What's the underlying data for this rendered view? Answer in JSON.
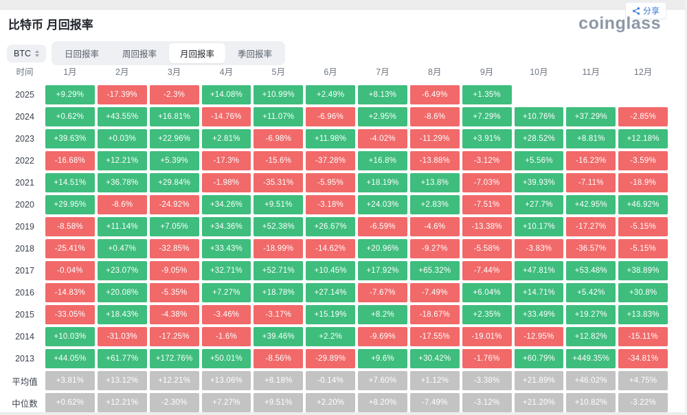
{
  "header": {
    "title": "比特币 月回报率",
    "share_label": "分享",
    "logo_text": "coinglass"
  },
  "controls": {
    "symbol_select": {
      "value": "BTC"
    },
    "tabs": [
      {
        "label": "日回报率",
        "active": false
      },
      {
        "label": "周回报率",
        "active": false
      },
      {
        "label": "月回报率",
        "active": true
      },
      {
        "label": "季回报率",
        "active": false
      }
    ]
  },
  "colors": {
    "positive": "#3ebd7d",
    "negative": "#f16969",
    "summary": "#c3c3c3",
    "accent_blue": "#3577d4",
    "logo_gray": "#8e98a6"
  },
  "table": {
    "time_header": "时间",
    "months": [
      "1月",
      "2月",
      "3月",
      "4月",
      "5月",
      "6月",
      "7月",
      "8月",
      "9月",
      "10月",
      "11月",
      "12月"
    ],
    "rows": [
      {
        "label": "2025",
        "type": "year",
        "values": [
          "+9.29%",
          "-17.39%",
          "-2.3%",
          "+14.08%",
          "+10.99%",
          "+2.49%",
          "+8.13%",
          "-6.49%",
          "+1.35%",
          "",
          "",
          ""
        ]
      },
      {
        "label": "2024",
        "type": "year",
        "values": [
          "+0.62%",
          "+43.55%",
          "+16.81%",
          "-14.76%",
          "+11.07%",
          "-6.96%",
          "+2.95%",
          "-8.6%",
          "+7.29%",
          "+10.76%",
          "+37.29%",
          "-2.85%"
        ]
      },
      {
        "label": "2023",
        "type": "year",
        "values": [
          "+39.63%",
          "+0.03%",
          "+22.96%",
          "+2.81%",
          "-6.98%",
          "+11.98%",
          "-4.02%",
          "-11.29%",
          "+3.91%",
          "+28.52%",
          "+8.81%",
          "+12.18%"
        ]
      },
      {
        "label": "2022",
        "type": "year",
        "values": [
          "-16.68%",
          "+12.21%",
          "+5.39%",
          "-17.3%",
          "-15.6%",
          "-37.28%",
          "+16.8%",
          "-13.88%",
          "-3.12%",
          "+5.56%",
          "-16.23%",
          "-3.59%"
        ]
      },
      {
        "label": "2021",
        "type": "year",
        "values": [
          "+14.51%",
          "+36.78%",
          "+29.84%",
          "-1.98%",
          "-35.31%",
          "-5.95%",
          "+18.19%",
          "+13.8%",
          "-7.03%",
          "+39.93%",
          "-7.11%",
          "-18.9%"
        ]
      },
      {
        "label": "2020",
        "type": "year",
        "values": [
          "+29.95%",
          "-8.6%",
          "-24.92%",
          "+34.26%",
          "+9.51%",
          "-3.18%",
          "+24.03%",
          "+2.83%",
          "-7.51%",
          "+27.7%",
          "+42.95%",
          "+46.92%"
        ]
      },
      {
        "label": "2019",
        "type": "year",
        "values": [
          "-8.58%",
          "+11.14%",
          "+7.05%",
          "+34.36%",
          "+52.38%",
          "+26.67%",
          "-6.59%",
          "-4.6%",
          "-13.38%",
          "+10.17%",
          "-17.27%",
          "-5.15%"
        ]
      },
      {
        "label": "2018",
        "type": "year",
        "values": [
          "-25.41%",
          "+0.47%",
          "-32.85%",
          "+33.43%",
          "-18.99%",
          "-14.62%",
          "+20.96%",
          "-9.27%",
          "-5.58%",
          "-3.83%",
          "-36.57%",
          "-5.15%"
        ]
      },
      {
        "label": "2017",
        "type": "year",
        "values": [
          "-0.04%",
          "+23.07%",
          "-9.05%",
          "+32.71%",
          "+52.71%",
          "+10.45%",
          "+17.92%",
          "+65.32%",
          "-7.44%",
          "+47.81%",
          "+53.48%",
          "+38.89%"
        ]
      },
      {
        "label": "2016",
        "type": "year",
        "values": [
          "-14.83%",
          "+20.08%",
          "-5.35%",
          "+7.27%",
          "+18.78%",
          "+27.14%",
          "-7.67%",
          "-7.49%",
          "+6.04%",
          "+14.71%",
          "+5.42%",
          "+30.8%"
        ]
      },
      {
        "label": "2015",
        "type": "year",
        "values": [
          "-33.05%",
          "+18.43%",
          "-4.38%",
          "-3.46%",
          "-3.17%",
          "+15.19%",
          "+8.2%",
          "-18.67%",
          "+2.35%",
          "+33.49%",
          "+19.27%",
          "+13.83%"
        ]
      },
      {
        "label": "2014",
        "type": "year",
        "values": [
          "+10.03%",
          "-31.03%",
          "-17.25%",
          "-1.6%",
          "+39.46%",
          "+2.2%",
          "-9.69%",
          "-17.55%",
          "-19.01%",
          "-12.95%",
          "+12.82%",
          "-15.11%"
        ]
      },
      {
        "label": "2013",
        "type": "year",
        "values": [
          "+44.05%",
          "+61.77%",
          "+172.76%",
          "+50.01%",
          "-8.56%",
          "-29.89%",
          "+9.6%",
          "+30.42%",
          "-1.76%",
          "+60.79%",
          "+449.35%",
          "-34.81%"
        ]
      },
      {
        "label": "平均值",
        "type": "summary",
        "values": [
          "+3.81%",
          "+13.12%",
          "+12.21%",
          "+13.06%",
          "+8.18%",
          "-0.14%",
          "+7.60%",
          "+1.12%",
          "-3.38%",
          "+21.89%",
          "+46.02%",
          "+4.75%"
        ]
      },
      {
        "label": "中位数",
        "type": "summary",
        "values": [
          "+0.62%",
          "+12.21%",
          "-2.30%",
          "+7.27%",
          "+9.51%",
          "+2.20%",
          "+8.20%",
          "-7.49%",
          "-3.12%",
          "+21.20%",
          "+10.82%",
          "-3.22%"
        ]
      }
    ]
  }
}
